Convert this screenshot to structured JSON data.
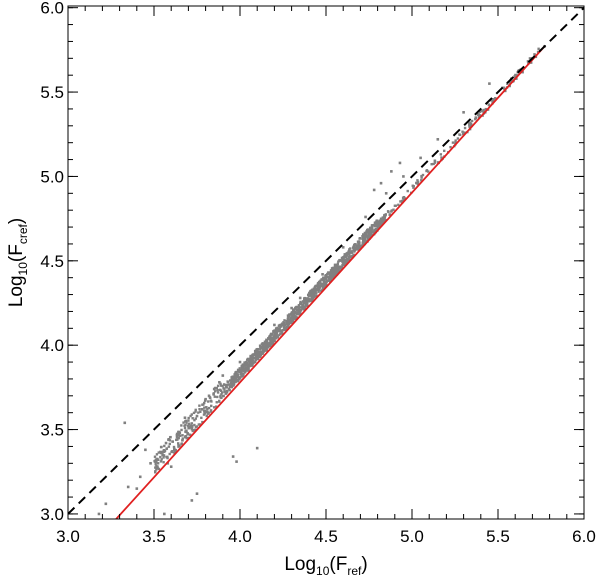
{
  "chart_data": {
    "type": "scatter",
    "title": "",
    "xlabel": {
      "main": "Log",
      "sub": "10",
      "open": "(F",
      "inner_sub": "ref",
      "close": ")"
    },
    "ylabel": {
      "main": "Log",
      "sub": "10",
      "open": "(F",
      "inner_sub": "cref",
      "close": ")"
    },
    "xlim": [
      3.0,
      6.0
    ],
    "ylim": [
      2.97,
      6.01
    ],
    "xticks": [
      3.0,
      3.5,
      4.0,
      4.5,
      5.0,
      5.5,
      6.0
    ],
    "yticks": [
      3.0,
      3.5,
      4.0,
      4.5,
      5.0,
      5.5,
      6.0
    ],
    "xtick_labels": [
      "3.0",
      "3.5",
      "4.0",
      "4.5",
      "5.0",
      "5.5",
      "6.0"
    ],
    "ytick_labels": [
      "3.0",
      "3.5",
      "4.0",
      "4.5",
      "5.0",
      "5.5",
      "6.0"
    ],
    "grid": false,
    "series": [
      {
        "kind": "scatter",
        "color": "#808080",
        "description": "Data points (dense cloud following fit line)",
        "dense_band": {
          "x_range": [
            3.5,
            5.77
          ],
          "slope": 1.1,
          "intercept": -0.58
        },
        "points": [
          [
            3.33,
            3.54
          ],
          [
            3.22,
            3.06
          ],
          [
            3.18,
            3.0
          ],
          [
            3.42,
            3.22
          ],
          [
            3.35,
            3.16
          ],
          [
            3.48,
            3.3
          ],
          [
            3.55,
            3.35
          ],
          [
            3.6,
            3.28
          ],
          [
            3.62,
            3.36
          ],
          [
            3.65,
            3.48
          ],
          [
            3.7,
            3.45
          ],
          [
            3.72,
            3.52
          ],
          [
            3.75,
            3.58
          ],
          [
            3.78,
            3.62
          ],
          [
            3.8,
            3.68
          ],
          [
            3.82,
            3.7
          ],
          [
            3.85,
            3.74
          ],
          [
            3.88,
            3.78
          ],
          [
            3.9,
            3.82
          ],
          [
            3.58,
            3.3
          ],
          [
            3.57,
            3.42
          ],
          [
            3.68,
            3.57
          ],
          [
            3.52,
            3.28
          ],
          [
            3.4,
            3.15
          ],
          [
            3.45,
            3.38
          ],
          [
            3.96,
            3.34
          ],
          [
            3.98,
            3.31
          ],
          [
            4.1,
            3.39
          ],
          [
            3.75,
            3.12
          ],
          [
            3.72,
            3.08
          ],
          [
            3.56,
            3.0
          ],
          [
            4.05,
            3.85
          ],
          [
            4.12,
            3.95
          ],
          [
            4.2,
            4.05
          ],
          [
            4.25,
            4.12
          ],
          [
            4.35,
            4.28
          ],
          [
            4.48,
            4.42
          ],
          [
            4.6,
            4.58
          ],
          [
            4.73,
            4.76
          ],
          [
            4.85,
            4.9
          ],
          [
            4.95,
            5.0
          ],
          [
            5.05,
            5.11
          ],
          [
            5.15,
            5.22
          ],
          [
            5.3,
            5.38
          ],
          [
            5.45,
            5.55
          ],
          [
            5.6,
            5.58
          ],
          [
            5.7,
            5.7
          ],
          [
            5.77,
            5.77
          ],
          [
            4.78,
            4.92
          ],
          [
            4.82,
            4.96
          ],
          [
            4.88,
            5.03
          ],
          [
            4.93,
            5.08
          ],
          [
            4.2,
            4.12
          ],
          [
            4.3,
            4.22
          ],
          [
            4.0,
            3.9
          ]
        ]
      },
      {
        "kind": "line",
        "color": "#e02020",
        "description": "Fit line",
        "x": [
          3.28,
          5.77
        ],
        "y": [
          2.97,
          5.77
        ]
      },
      {
        "kind": "line",
        "style": "dashed",
        "color": "#000000",
        "description": "One-to-one line",
        "x": [
          3.0,
          6.0
        ],
        "y": [
          3.0,
          6.0
        ]
      }
    ]
  }
}
